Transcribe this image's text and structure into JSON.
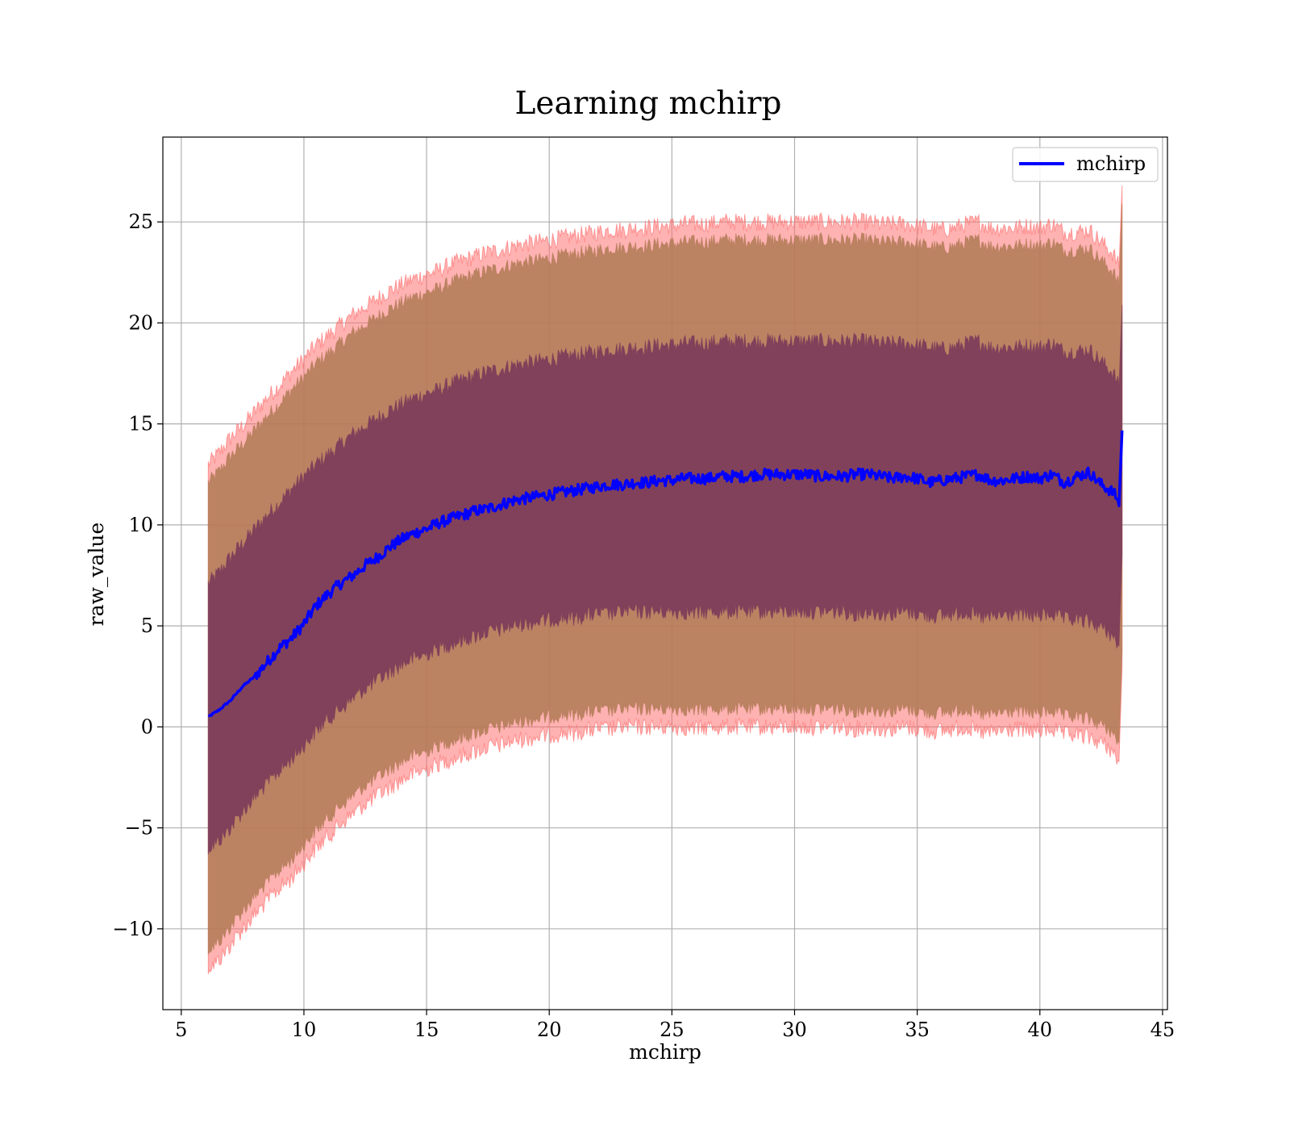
{
  "chart_data": {
    "type": "line",
    "title": "Learning mchirp",
    "xlabel": "mchirp",
    "ylabel": "raw_value",
    "xlim": [
      4.25,
      45.2
    ],
    "ylim": [
      -14.0,
      29.2
    ],
    "xticks": [
      5,
      10,
      15,
      20,
      25,
      30,
      35,
      40,
      45
    ],
    "yticks": [
      -10,
      -5,
      0,
      5,
      10,
      15,
      20,
      25
    ],
    "ytick_labels": [
      "−10",
      "−5",
      "0",
      "5",
      "10",
      "15",
      "20",
      "25"
    ],
    "grid": true,
    "legend": {
      "position": "top-right",
      "entries": [
        "mchirp"
      ]
    },
    "colors": {
      "line": "#0000ff",
      "band_outer": "#ff6666",
      "band_middle": "#b07a55",
      "band_inner": "#7a3a5a",
      "grid": "#b0b0b0"
    },
    "x": [
      6.1,
      6.5,
      7.0,
      7.5,
      8.0,
      8.5,
      9.0,
      9.5,
      10.0,
      10.5,
      11.0,
      11.5,
      12.0,
      12.5,
      13.0,
      13.5,
      14.0,
      14.5,
      15.0,
      15.5,
      16.0,
      16.5,
      17.0,
      17.5,
      18.0,
      18.5,
      19.0,
      19.5,
      20.0,
      20.5,
      21.0,
      21.5,
      22.0,
      22.5,
      23.0,
      23.5,
      24.0,
      24.5,
      25.0,
      25.5,
      26.0,
      26.5,
      27.0,
      27.5,
      28.0,
      28.5,
      29.0,
      29.5,
      30.0,
      30.5,
      31.0,
      31.5,
      32.0,
      32.5,
      33.0,
      33.5,
      34.0,
      34.5,
      35.0,
      35.5,
      36.0,
      36.5,
      37.0,
      37.5,
      38.0,
      38.5,
      39.0,
      39.5,
      40.0,
      40.5,
      41.0,
      41.5,
      42.0,
      42.5,
      43.0,
      43.25,
      43.35
    ],
    "series": [
      {
        "name": "mchirp",
        "role": "mean",
        "values": [
          0.5,
          0.8,
          1.3,
          2.0,
          2.5,
          3.2,
          3.9,
          4.4,
          5.1,
          6.0,
          6.6,
          7.1,
          7.5,
          8.0,
          8.4,
          8.9,
          9.3,
          9.6,
          9.8,
          10.1,
          10.3,
          10.5,
          10.7,
          10.8,
          11.0,
          11.2,
          11.3,
          11.4,
          11.5,
          11.6,
          11.7,
          11.8,
          11.9,
          12.0,
          12.0,
          12.1,
          12.1,
          12.2,
          12.2,
          12.3,
          12.3,
          12.3,
          12.4,
          12.4,
          12.4,
          12.5,
          12.5,
          12.5,
          12.5,
          12.5,
          12.4,
          12.4,
          12.4,
          12.5,
          12.5,
          12.4,
          12.3,
          12.4,
          12.3,
          12.1,
          12.2,
          12.3,
          12.4,
          12.5,
          12.2,
          12.2,
          12.3,
          12.4,
          12.3,
          12.5,
          12.1,
          12.4,
          12.6,
          12.0,
          11.6,
          11.0,
          14.6
        ]
      }
    ],
    "bands": [
      {
        "role": "outer",
        "lower": [
          -11.9,
          -11.6,
          -10.8,
          -10.0,
          -9.3,
          -8.6,
          -8.0,
          -7.5,
          -6.7,
          -6.0,
          -5.4,
          -4.8,
          -4.3,
          -3.8,
          -3.4,
          -3.0,
          -2.6,
          -2.3,
          -2.1,
          -1.8,
          -1.6,
          -1.4,
          -1.2,
          -1.0,
          -0.9,
          -0.7,
          -0.6,
          -0.5,
          -0.4,
          -0.3,
          -0.3,
          -0.2,
          -0.1,
          -0.1,
          0.0,
          0.0,
          0.0,
          0.0,
          0.0,
          0.0,
          -0.1,
          0.0,
          0.0,
          0.0,
          0.0,
          0.0,
          0.0,
          0.0,
          0.0,
          0.0,
          0.0,
          0.0,
          0.0,
          -0.1,
          0.0,
          -0.1,
          -0.1,
          0.0,
          -0.1,
          -0.2,
          -0.2,
          -0.1,
          0.0,
          -0.3,
          -0.3,
          -0.2,
          -0.1,
          -0.2,
          -0.2,
          -0.1,
          -0.4,
          -0.4,
          -0.5,
          -0.8,
          -1.2,
          -1.6,
          2.6
        ],
        "upper": [
          13.0,
          13.5,
          14.3,
          14.9,
          15.6,
          16.3,
          16.9,
          17.6,
          18.2,
          18.9,
          19.4,
          19.9,
          20.4,
          20.8,
          21.2,
          21.6,
          21.9,
          22.2,
          22.4,
          22.6,
          22.9,
          23.1,
          23.3,
          23.5,
          23.6,
          23.8,
          23.9,
          24.0,
          24.1,
          24.2,
          24.3,
          24.4,
          24.5,
          24.6,
          24.6,
          24.7,
          24.7,
          24.8,
          24.8,
          24.9,
          24.9,
          24.9,
          25.0,
          25.0,
          25.0,
          25.0,
          25.0,
          25.0,
          25.0,
          25.0,
          25.0,
          25.0,
          25.0,
          25.0,
          25.0,
          24.9,
          24.9,
          24.9,
          24.8,
          24.7,
          24.6,
          24.7,
          24.9,
          25.0,
          24.7,
          24.7,
          24.7,
          24.8,
          24.7,
          24.9,
          24.5,
          24.5,
          24.6,
          24.0,
          23.4,
          22.7,
          26.8
        ]
      },
      {
        "role": "middle",
        "lower": [
          -11.0,
          -10.7,
          -9.9,
          -9.1,
          -8.4,
          -7.7,
          -7.1,
          -6.6,
          -5.8,
          -5.1,
          -4.5,
          -3.9,
          -3.4,
          -2.9,
          -2.5,
          -2.1,
          -1.7,
          -1.4,
          -1.2,
          -0.9,
          -0.7,
          -0.5,
          -0.3,
          -0.1,
          0.0,
          0.2,
          0.3,
          0.4,
          0.5,
          0.6,
          0.6,
          0.7,
          0.8,
          0.8,
          0.9,
          0.9,
          0.9,
          0.9,
          0.9,
          0.9,
          0.8,
          0.9,
          0.9,
          0.9,
          0.9,
          0.9,
          0.9,
          0.9,
          0.9,
          0.9,
          0.9,
          0.9,
          0.9,
          0.8,
          0.9,
          0.8,
          0.8,
          0.9,
          0.8,
          0.7,
          0.7,
          0.8,
          0.9,
          0.6,
          0.6,
          0.7,
          0.8,
          0.7,
          0.7,
          0.8,
          0.5,
          0.5,
          0.4,
          0.1,
          -0.3,
          -0.7,
          3.5
        ],
        "upper": [
          12.1,
          12.6,
          13.4,
          14.0,
          14.7,
          15.4,
          16.0,
          16.7,
          17.3,
          18.0,
          18.5,
          19.0,
          19.5,
          19.9,
          20.3,
          20.7,
          21.0,
          21.3,
          21.5,
          21.7,
          22.0,
          22.2,
          22.4,
          22.6,
          22.7,
          22.9,
          23.0,
          23.1,
          23.2,
          23.3,
          23.4,
          23.5,
          23.6,
          23.7,
          23.7,
          23.8,
          23.8,
          23.9,
          23.9,
          24.0,
          24.0,
          24.0,
          24.1,
          24.1,
          24.1,
          24.1,
          24.1,
          24.1,
          24.1,
          24.1,
          24.1,
          24.1,
          24.1,
          24.1,
          24.1,
          24.0,
          24.0,
          24.0,
          23.9,
          23.8,
          23.7,
          23.8,
          24.0,
          24.1,
          23.8,
          23.8,
          23.8,
          23.9,
          23.8,
          24.0,
          23.6,
          23.6,
          23.7,
          23.1,
          22.5,
          21.8,
          25.9
        ]
      },
      {
        "role": "inner",
        "lower": [
          -6.0,
          -5.7,
          -5.0,
          -4.2,
          -3.5,
          -2.8,
          -2.2,
          -1.6,
          -0.9,
          -0.2,
          0.4,
          0.9,
          1.4,
          1.9,
          2.3,
          2.7,
          3.1,
          3.4,
          3.6,
          3.9,
          4.1,
          4.3,
          4.5,
          4.7,
          4.8,
          5.0,
          5.1,
          5.2,
          5.3,
          5.4,
          5.4,
          5.5,
          5.6,
          5.6,
          5.7,
          5.7,
          5.7,
          5.7,
          5.7,
          5.7,
          5.6,
          5.7,
          5.7,
          5.7,
          5.7,
          5.7,
          5.7,
          5.7,
          5.7,
          5.7,
          5.7,
          5.7,
          5.7,
          5.6,
          5.7,
          5.6,
          5.6,
          5.7,
          5.6,
          5.5,
          5.5,
          5.6,
          5.7,
          5.4,
          5.4,
          5.5,
          5.6,
          5.5,
          5.5,
          5.6,
          5.3,
          5.3,
          5.2,
          4.9,
          4.5,
          4.1,
          8.3
        ],
        "upper": [
          7.1,
          7.6,
          8.4,
          9.1,
          9.8,
          10.5,
          11.1,
          11.8,
          12.4,
          13.0,
          13.5,
          14.0,
          14.5,
          14.9,
          15.3,
          15.7,
          16.0,
          16.3,
          16.5,
          16.7,
          17.0,
          17.2,
          17.4,
          17.6,
          17.7,
          17.9,
          18.0,
          18.1,
          18.2,
          18.3,
          18.4,
          18.5,
          18.6,
          18.7,
          18.7,
          18.8,
          18.8,
          18.9,
          18.9,
          19.0,
          19.0,
          19.0,
          19.1,
          19.1,
          19.1,
          19.1,
          19.1,
          19.1,
          19.1,
          19.1,
          19.1,
          19.1,
          19.1,
          19.1,
          19.1,
          19.0,
          19.0,
          19.0,
          18.9,
          18.8,
          18.7,
          18.8,
          19.0,
          19.1,
          18.8,
          18.8,
          18.8,
          18.9,
          18.8,
          19.0,
          18.6,
          18.6,
          18.7,
          18.1,
          17.5,
          16.8,
          20.9
        ]
      }
    ]
  }
}
